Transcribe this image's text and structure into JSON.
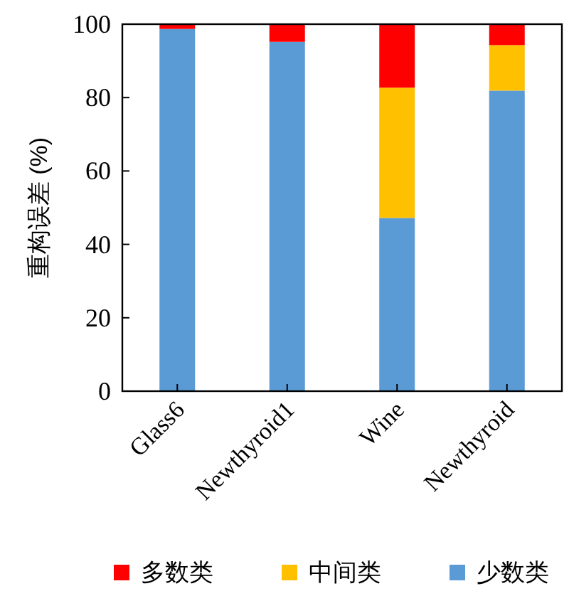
{
  "chart_data": {
    "type": "bar",
    "stacked": true,
    "ylabel": "重构误差 (%)",
    "categories": [
      "Glass6",
      "Newthyroid1",
      "Wine",
      "Newthyroid"
    ],
    "series": [
      {
        "name": "少数类",
        "color": "#5b9bd5",
        "values": [
          98.7,
          95.2,
          47.2,
          81.9
        ]
      },
      {
        "name": "中间类",
        "color": "#ffc000",
        "values": [
          0,
          0,
          35.5,
          12.4
        ]
      },
      {
        "name": "多数类",
        "color": "#ff0000",
        "values": [
          1.3,
          4.8,
          17.3,
          5.7
        ]
      }
    ],
    "ylim": [
      0,
      100
    ],
    "yticks": [
      0,
      20,
      40,
      60,
      80,
      100
    ],
    "legend": "bottom"
  }
}
